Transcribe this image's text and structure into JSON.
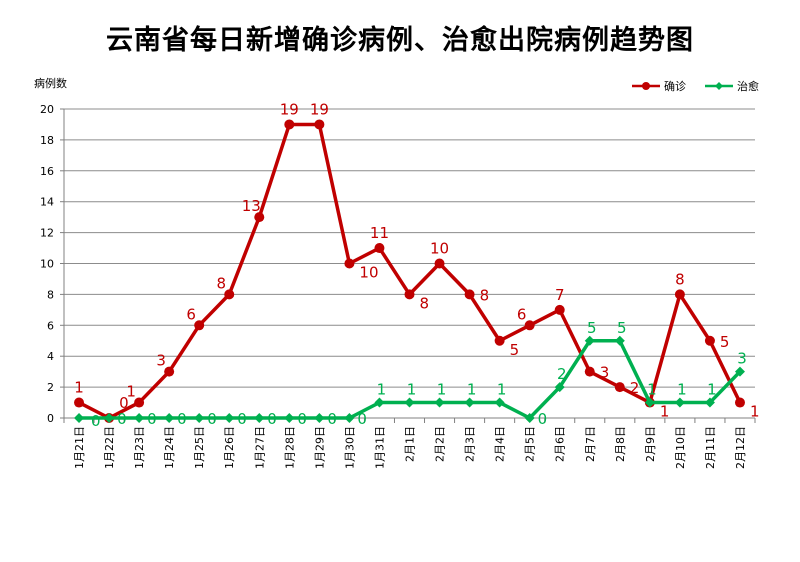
{
  "chart_data": {
    "type": "line",
    "title": "云南省每日新增确诊病例、治愈出院病例趋势图",
    "ylabel": "病例数",
    "xlabel": "",
    "ylim": [
      0,
      20
    ],
    "yticks": [
      0,
      2,
      4,
      6,
      8,
      10,
      12,
      14,
      16,
      18,
      20
    ],
    "grid": true,
    "legend_position": "top-right",
    "categories": [
      "1月21日",
      "1月22日",
      "1月23日",
      "1月24日",
      "1月25日",
      "1月26日",
      "1月27日",
      "1月28日",
      "1月29日",
      "1月30日",
      "1月31日",
      "2月1日",
      "2月2日",
      "2月3日",
      "2月4日",
      "2月5日",
      "2月6日",
      "2月7日",
      "2月8日",
      "2月9日",
      "2月10日",
      "2月11日",
      "2月12日"
    ],
    "series": [
      {
        "name": "确诊",
        "color": "#C00000",
        "marker": "circle",
        "values": [
          1,
          0,
          1,
          3,
          6,
          8,
          13,
          19,
          19,
          10,
          11,
          8,
          10,
          8,
          5,
          6,
          7,
          3,
          2,
          1,
          8,
          5,
          1
        ]
      },
      {
        "name": "治愈",
        "color": "#00B050",
        "marker": "diamond",
        "values": [
          0,
          0,
          0,
          0,
          0,
          0,
          0,
          0,
          0,
          0,
          1,
          1,
          1,
          1,
          1,
          0,
          2,
          5,
          5,
          1,
          1,
          1,
          3
        ]
      }
    ]
  }
}
